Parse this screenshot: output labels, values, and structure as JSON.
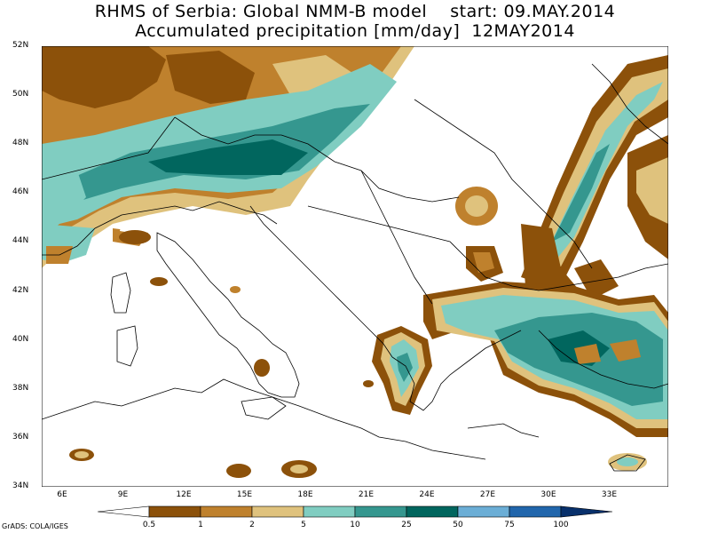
{
  "title": {
    "line1": "RHMS of Serbia: Global NMM-B model    start: 09.MAY.2014",
    "line2": "Accumulated precipitation [mm/day]  12MAY2014"
  },
  "lat_labels": [
    "52N",
    "50N",
    "48N",
    "46N",
    "44N",
    "42N",
    "40N",
    "38N",
    "36N",
    "34N"
  ],
  "lon_labels": [
    "6E",
    "9E",
    "12E",
    "15E",
    "18E",
    "21E",
    "24E",
    "27E",
    "30E",
    "33E"
  ],
  "colorbar": {
    "levels": [
      "0.5",
      "1",
      "2",
      "5",
      "10",
      "25",
      "50",
      "75",
      "100"
    ],
    "colors": [
      "#ffffff",
      "#8c510a",
      "#bf812d",
      "#dfc27d",
      "#80cdc1",
      "#35978f",
      "#01665e",
      "#6baed6",
      "#2166ac",
      "#08306b"
    ]
  },
  "credit": "GrADS: COLA/IGES"
}
